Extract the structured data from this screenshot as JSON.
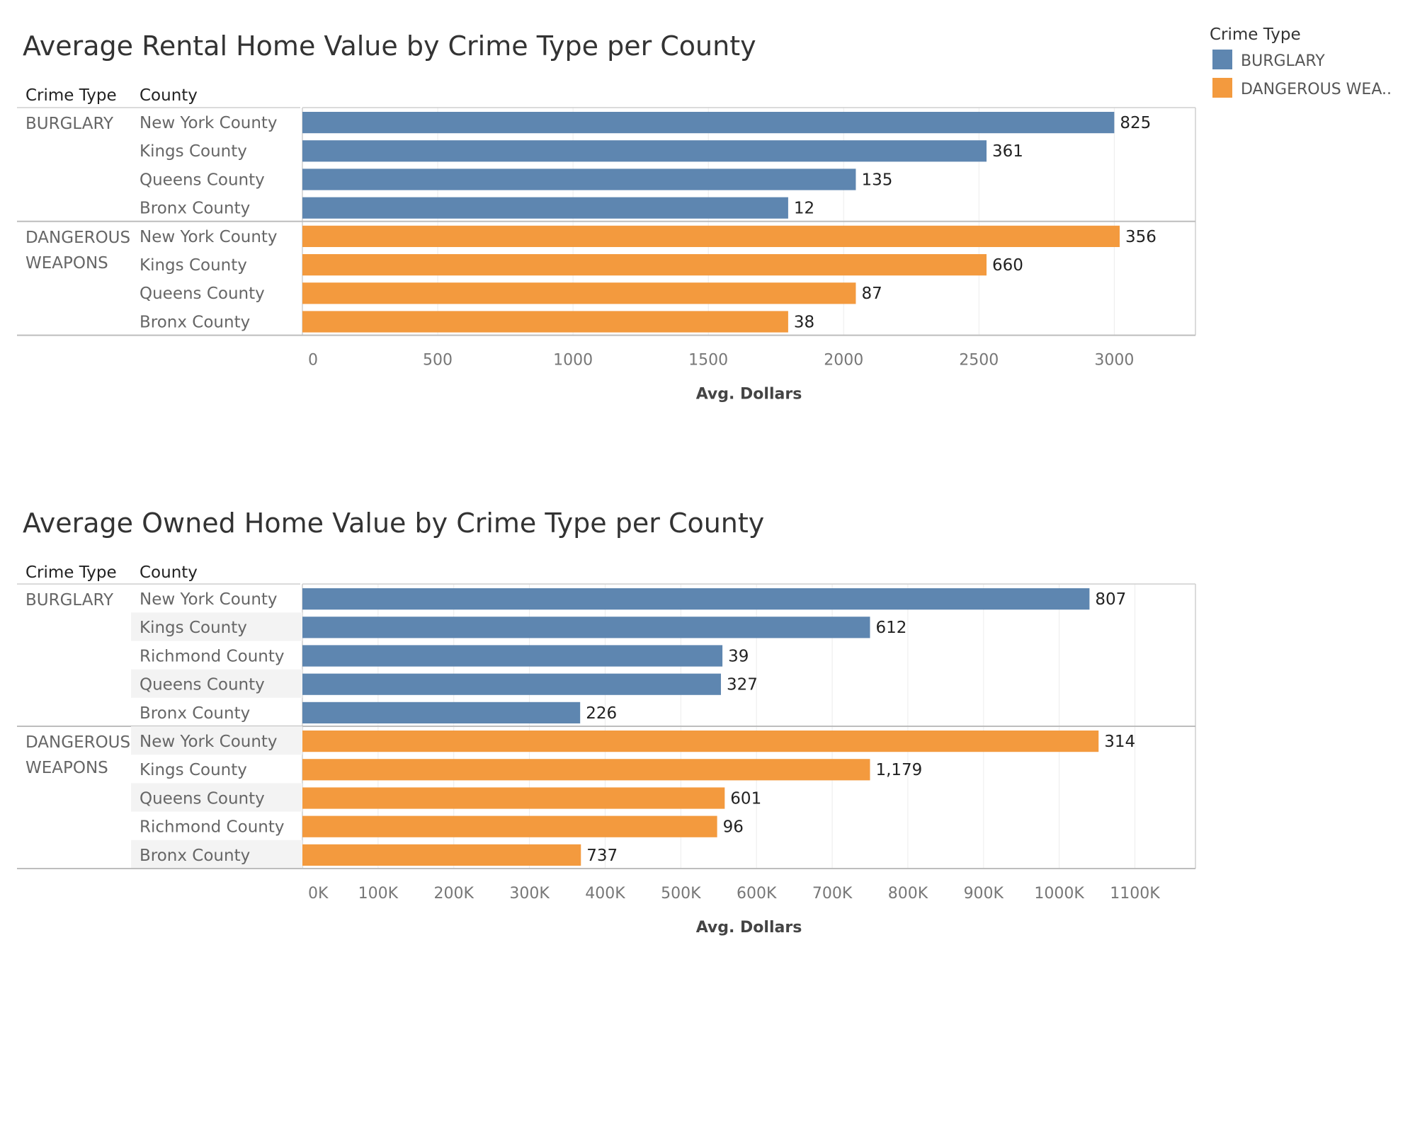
{
  "colors": {
    "BURGLARY": "#5e86b0",
    "DANGEROUS WEAPONS": "#f39a3e"
  },
  "legend": {
    "title": "Crime Type",
    "entries": [
      {
        "label": "BURGLARY",
        "key": "BURGLARY"
      },
      {
        "label": "DANGEROUS WEA..",
        "key": "DANGEROUS WEAPONS"
      }
    ]
  },
  "chart_data": [
    {
      "type": "bar",
      "title": "Average Rental Home Value by Crime Type per County",
      "row_headers": [
        "Crime Type",
        "County"
      ],
      "xlabel": "Avg. Dollars",
      "xlim": [
        0,
        3300
      ],
      "ticks": [
        0,
        500,
        1000,
        1500,
        2000,
        2500,
        3000
      ],
      "tick_labels": [
        "0",
        "500",
        "1000",
        "1500",
        "2000",
        "2500",
        "3000"
      ],
      "groups": [
        {
          "name": "BURGLARY",
          "label_lines": [
            "BURGLARY"
          ],
          "rows": [
            {
              "county": "New York County",
              "value": 3000,
              "label": "825"
            },
            {
              "county": "Kings County",
              "value": 2528,
              "label": "361"
            },
            {
              "county": "Queens County",
              "value": 2045,
              "label": "135"
            },
            {
              "county": "Bronx County",
              "value": 1795,
              "label": "12"
            }
          ]
        },
        {
          "name": "DANGEROUS WEAPONS",
          "label_lines": [
            "DANGEROUS",
            "WEAPONS"
          ],
          "rows": [
            {
              "county": "New York County",
              "value": 3020,
              "label": "356"
            },
            {
              "county": "Kings County",
              "value": 2528,
              "label": "660"
            },
            {
              "county": "Queens County",
              "value": 2045,
              "label": "87"
            },
            {
              "county": "Bronx County",
              "value": 1795,
              "label": "38"
            }
          ]
        }
      ]
    },
    {
      "type": "bar",
      "title": "Average Owned Home Value by Crime Type per County",
      "row_headers": [
        "Crime Type",
        "County"
      ],
      "xlabel": "Avg. Dollars",
      "xlim": [
        0,
        1180000
      ],
      "ticks": [
        0,
        100000,
        200000,
        300000,
        400000,
        500000,
        600000,
        700000,
        800000,
        900000,
        1000000,
        1100000
      ],
      "tick_labels": [
        "0K",
        "100K",
        "200K",
        "300K",
        "400K",
        "500K",
        "600K",
        "700K",
        "800K",
        "900K",
        "1000K",
        "1100K"
      ],
      "groups": [
        {
          "name": "BURGLARY",
          "label_lines": [
            "BURGLARY"
          ],
          "rows": [
            {
              "county": "New York County",
              "value": 1040000,
              "label": "807"
            },
            {
              "county": "Kings County",
              "value": 750000,
              "label": "612"
            },
            {
              "county": "Richmond County",
              "value": 555000,
              "label": "39"
            },
            {
              "county": "Queens County",
              "value": 553000,
              "label": "327"
            },
            {
              "county": "Bronx County",
              "value": 367000,
              "label": "226"
            }
          ]
        },
        {
          "name": "DANGEROUS WEAPONS",
          "label_lines": [
            "DANGEROUS",
            "WEAPONS"
          ],
          "rows": [
            {
              "county": "New York County",
              "value": 1052000,
              "label": "314"
            },
            {
              "county": "Kings County",
              "value": 750000,
              "label": "1,179"
            },
            {
              "county": "Queens County",
              "value": 558000,
              "label": "601"
            },
            {
              "county": "Richmond County",
              "value": 548000,
              "label": "96"
            },
            {
              "county": "Bronx County",
              "value": 368000,
              "label": "737"
            }
          ]
        }
      ]
    }
  ]
}
